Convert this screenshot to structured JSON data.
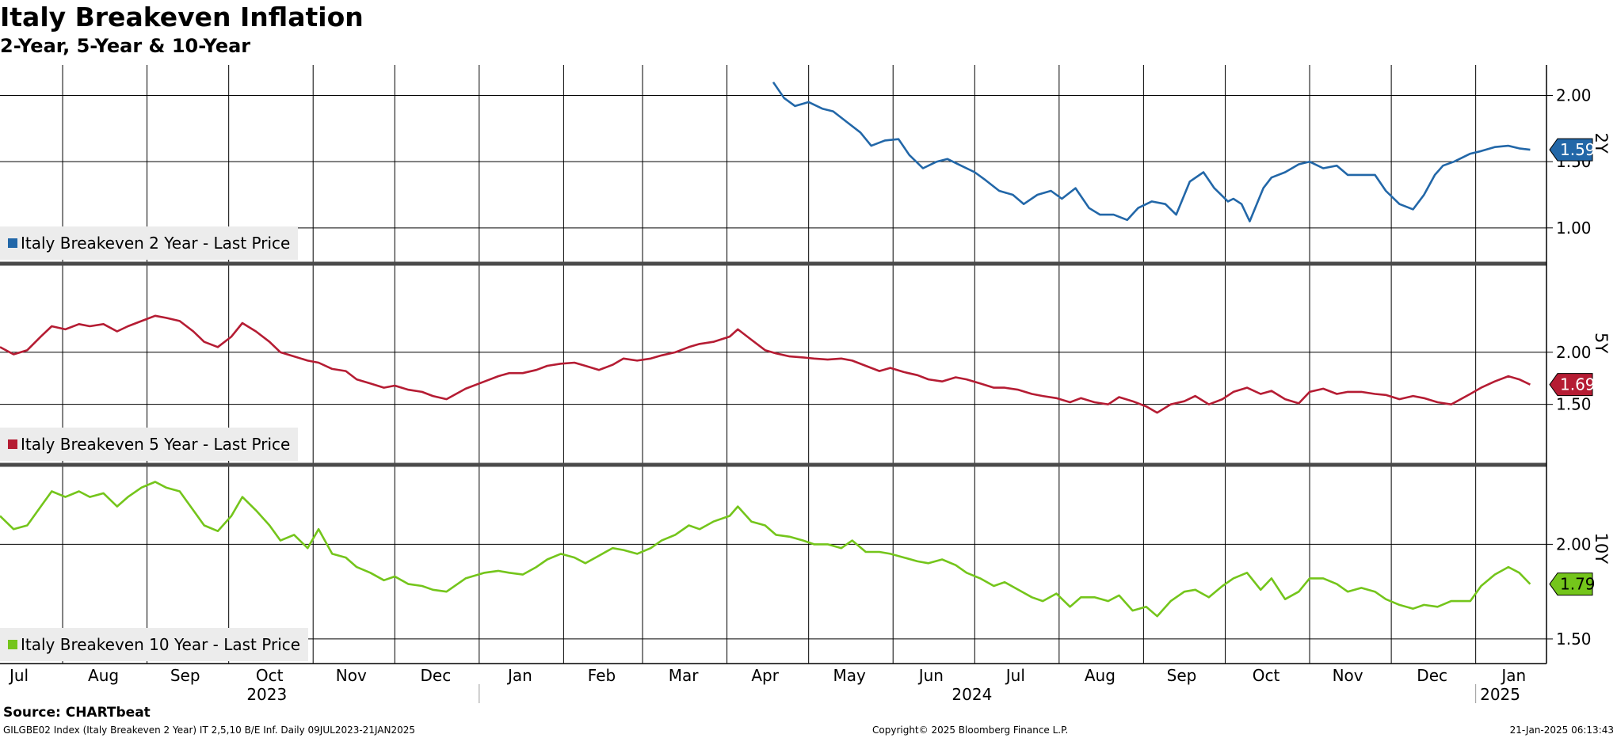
{
  "header": {
    "title": "Italy Breakeven Inflation",
    "subtitle": "2-Year, 5-Year & 10-Year"
  },
  "footer": {
    "source": "Source: CHARTbeat",
    "index_info": "GILGBE02 Index (Italy Breakeven 2 Year) IT 2,5,10 B/E Inf.  Daily 09JUL2023-21JAN2025",
    "copyright": "Copyright© 2025 Bloomberg Finance L.P.",
    "timestamp": "21-Jan-2025 06:13:43"
  },
  "chart_data": [
    {
      "type": "line",
      "axis_title": "2Y",
      "legend": "Italy Breakeven 2 Year - Last Price",
      "color": "#2267a8",
      "last_value": "1.59",
      "ylim": [
        0.73,
        2.23
      ],
      "yticks": [
        "2.00",
        "1.50",
        "1.00"
      ],
      "series": {
        "name": "Italy Breakeven 2 Year - Last Price",
        "x": [
          "2024-04-18",
          "2024-04-22",
          "2024-04-26",
          "2024-05-01",
          "2024-05-06",
          "2024-05-10",
          "2024-05-15",
          "2024-05-20",
          "2024-05-24",
          "2024-05-29",
          "2024-06-03",
          "2024-06-07",
          "2024-06-12",
          "2024-06-17",
          "2024-06-21",
          "2024-06-26",
          "2024-07-01",
          "2024-07-05",
          "2024-07-10",
          "2024-07-15",
          "2024-07-19",
          "2024-07-24",
          "2024-07-29",
          "2024-08-02",
          "2024-08-07",
          "2024-08-12",
          "2024-08-16",
          "2024-08-21",
          "2024-08-26",
          "2024-08-30",
          "2024-09-04",
          "2024-09-09",
          "2024-09-13",
          "2024-09-18",
          "2024-09-23",
          "2024-09-27",
          "2024-10-02",
          "2024-10-04",
          "2024-10-07",
          "2024-10-10",
          "2024-10-15",
          "2024-10-18",
          "2024-10-23",
          "2024-10-28",
          "2024-11-01",
          "2024-11-06",
          "2024-11-11",
          "2024-11-15",
          "2024-11-20",
          "2024-11-25",
          "2024-11-29",
          "2024-12-04",
          "2024-12-09",
          "2024-12-13",
          "2024-12-17",
          "2024-12-20",
          "2024-12-24",
          "2024-12-30",
          "2025-01-03",
          "2025-01-08",
          "2025-01-13",
          "2025-01-17",
          "2025-01-21"
        ],
        "y": [
          2.1,
          1.98,
          1.92,
          1.95,
          1.9,
          1.88,
          1.8,
          1.72,
          1.62,
          1.66,
          1.67,
          1.55,
          1.45,
          1.5,
          1.52,
          1.47,
          1.42,
          1.36,
          1.28,
          1.25,
          1.18,
          1.25,
          1.28,
          1.22,
          1.3,
          1.15,
          1.1,
          1.1,
          1.06,
          1.15,
          1.2,
          1.18,
          1.1,
          1.35,
          1.42,
          1.3,
          1.2,
          1.22,
          1.18,
          1.05,
          1.3,
          1.38,
          1.42,
          1.48,
          1.5,
          1.45,
          1.47,
          1.4,
          1.4,
          1.4,
          1.28,
          1.18,
          1.14,
          1.25,
          1.4,
          1.47,
          1.5,
          1.56,
          1.58,
          1.61,
          1.62,
          1.6,
          1.59
        ]
      }
    },
    {
      "type": "line",
      "axis_title": "5Y",
      "legend": "Italy Breakeven 5 Year - Last Price",
      "color": "#b51c33",
      "last_value": "1.69",
      "ylim": [
        0.92,
        2.85
      ],
      "yticks": [
        "2.00",
        "1.50"
      ],
      "series": {
        "name": "Italy Breakeven 5 Year - Last Price",
        "x": [
          "2023-07-09",
          "2023-07-14",
          "2023-07-19",
          "2023-07-24",
          "2023-07-28",
          "2023-08-02",
          "2023-08-07",
          "2023-08-11",
          "2023-08-16",
          "2023-08-21",
          "2023-08-25",
          "2023-08-30",
          "2023-09-04",
          "2023-09-08",
          "2023-09-13",
          "2023-09-18",
          "2023-09-22",
          "2023-09-27",
          "2023-10-02",
          "2023-10-06",
          "2023-10-11",
          "2023-10-16",
          "2023-10-20",
          "2023-10-25",
          "2023-10-30",
          "2023-11-03",
          "2023-11-08",
          "2023-11-13",
          "2023-11-17",
          "2023-11-22",
          "2023-11-27",
          "2023-12-01",
          "2023-12-06",
          "2023-12-11",
          "2023-12-15",
          "2023-12-20",
          "2023-12-27",
          "2024-01-03",
          "2024-01-08",
          "2024-01-12",
          "2024-01-17",
          "2024-01-22",
          "2024-01-26",
          "2024-01-31",
          "2024-02-05",
          "2024-02-09",
          "2024-02-14",
          "2024-02-19",
          "2024-02-23",
          "2024-02-28",
          "2024-03-04",
          "2024-03-08",
          "2024-03-13",
          "2024-03-18",
          "2024-03-22",
          "2024-03-27",
          "2024-04-02",
          "2024-04-05",
          "2024-04-10",
          "2024-04-15",
          "2024-04-19",
          "2024-04-24",
          "2024-04-29",
          "2024-05-03",
          "2024-05-08",
          "2024-05-13",
          "2024-05-17",
          "2024-05-22",
          "2024-05-27",
          "2024-05-31",
          "2024-06-05",
          "2024-06-10",
          "2024-06-14",
          "2024-06-19",
          "2024-06-24",
          "2024-06-28",
          "2024-07-03",
          "2024-07-08",
          "2024-07-12",
          "2024-07-17",
          "2024-07-22",
          "2024-07-26",
          "2024-07-31",
          "2024-08-05",
          "2024-08-09",
          "2024-08-14",
          "2024-08-19",
          "2024-08-23",
          "2024-08-28",
          "2024-09-02",
          "2024-09-06",
          "2024-09-11",
          "2024-09-16",
          "2024-09-20",
          "2024-09-25",
          "2024-09-30",
          "2024-10-04",
          "2024-10-09",
          "2024-10-14",
          "2024-10-18",
          "2024-10-23",
          "2024-10-28",
          "2024-11-01",
          "2024-11-06",
          "2024-11-11",
          "2024-11-15",
          "2024-11-20",
          "2024-11-25",
          "2024-11-29",
          "2024-12-04",
          "2024-12-09",
          "2024-12-13",
          "2024-12-18",
          "2024-12-23",
          "2024-12-30",
          "2025-01-03",
          "2025-01-08",
          "2025-01-13",
          "2025-01-17",
          "2025-01-21"
        ],
        "y": [
          2.05,
          1.98,
          2.02,
          2.15,
          2.25,
          2.22,
          2.27,
          2.25,
          2.27,
          2.2,
          2.25,
          2.3,
          2.35,
          2.33,
          2.3,
          2.2,
          2.1,
          2.05,
          2.15,
          2.28,
          2.2,
          2.1,
          2.0,
          1.96,
          1.92,
          1.9,
          1.84,
          1.82,
          1.74,
          1.7,
          1.66,
          1.68,
          1.64,
          1.62,
          1.58,
          1.55,
          1.65,
          1.72,
          1.77,
          1.8,
          1.8,
          1.83,
          1.87,
          1.89,
          1.9,
          1.87,
          1.83,
          1.88,
          1.94,
          1.92,
          1.94,
          1.97,
          2.0,
          2.05,
          2.08,
          2.1,
          2.15,
          2.22,
          2.12,
          2.02,
          1.99,
          1.96,
          1.95,
          1.94,
          1.93,
          1.94,
          1.92,
          1.87,
          1.82,
          1.85,
          1.81,
          1.78,
          1.74,
          1.72,
          1.76,
          1.74,
          1.7,
          1.66,
          1.66,
          1.64,
          1.6,
          1.58,
          1.56,
          1.52,
          1.56,
          1.52,
          1.5,
          1.57,
          1.53,
          1.48,
          1.42,
          1.5,
          1.53,
          1.58,
          1.5,
          1.55,
          1.62,
          1.66,
          1.6,
          1.63,
          1.55,
          1.51,
          1.62,
          1.65,
          1.6,
          1.62,
          1.62,
          1.6,
          1.59,
          1.55,
          1.58,
          1.56,
          1.52,
          1.5,
          1.6,
          1.66,
          1.72,
          1.77,
          1.74,
          1.69
        ]
      }
    },
    {
      "type": "line",
      "axis_title": "10Y",
      "legend": "Italy Breakeven 10 Year - Last Price",
      "color": "#74c51b",
      "last_value": "1.79",
      "ylim": [
        1.37,
        2.42
      ],
      "yticks": [
        "2.00",
        "1.50"
      ],
      "series": {
        "name": "Italy Breakeven 10 Year - Last Price",
        "x": [
          "2023-07-09",
          "2023-07-14",
          "2023-07-19",
          "2023-07-24",
          "2023-07-28",
          "2023-08-02",
          "2023-08-07",
          "2023-08-11",
          "2023-08-16",
          "2023-08-21",
          "2023-08-25",
          "2023-08-30",
          "2023-09-04",
          "2023-09-08",
          "2023-09-13",
          "2023-09-18",
          "2023-09-22",
          "2023-09-27",
          "2023-10-02",
          "2023-10-06",
          "2023-10-11",
          "2023-10-16",
          "2023-10-20",
          "2023-10-25",
          "2023-10-30",
          "2023-11-03",
          "2023-11-08",
          "2023-11-13",
          "2023-11-17",
          "2023-11-22",
          "2023-11-27",
          "2023-12-01",
          "2023-12-06",
          "2023-12-11",
          "2023-12-15",
          "2023-12-20",
          "2023-12-27",
          "2024-01-03",
          "2024-01-08",
          "2024-01-12",
          "2024-01-17",
          "2024-01-22",
          "2024-01-26",
          "2024-01-31",
          "2024-02-05",
          "2024-02-09",
          "2024-02-14",
          "2024-02-19",
          "2024-02-23",
          "2024-02-28",
          "2024-03-04",
          "2024-03-08",
          "2024-03-13",
          "2024-03-18",
          "2024-03-22",
          "2024-03-27",
          "2024-04-02",
          "2024-04-05",
          "2024-04-10",
          "2024-04-15",
          "2024-04-19",
          "2024-04-24",
          "2024-04-29",
          "2024-05-03",
          "2024-05-08",
          "2024-05-13",
          "2024-05-17",
          "2024-05-22",
          "2024-05-27",
          "2024-05-31",
          "2024-06-05",
          "2024-06-10",
          "2024-06-14",
          "2024-06-19",
          "2024-06-24",
          "2024-06-28",
          "2024-07-03",
          "2024-07-08",
          "2024-07-12",
          "2024-07-17",
          "2024-07-22",
          "2024-07-26",
          "2024-07-31",
          "2024-08-05",
          "2024-08-09",
          "2024-08-14",
          "2024-08-19",
          "2024-08-23",
          "2024-08-28",
          "2024-09-02",
          "2024-09-06",
          "2024-09-11",
          "2024-09-16",
          "2024-09-20",
          "2024-09-25",
          "2024-09-30",
          "2024-10-04",
          "2024-10-09",
          "2024-10-14",
          "2024-10-18",
          "2024-10-23",
          "2024-10-28",
          "2024-11-01",
          "2024-11-06",
          "2024-11-11",
          "2024-11-15",
          "2024-11-20",
          "2024-11-25",
          "2024-11-29",
          "2024-12-04",
          "2024-12-09",
          "2024-12-13",
          "2024-12-18",
          "2024-12-23",
          "2024-12-30",
          "2025-01-03",
          "2025-01-08",
          "2025-01-13",
          "2025-01-17",
          "2025-01-21"
        ],
        "y": [
          2.15,
          2.08,
          2.1,
          2.2,
          2.28,
          2.25,
          2.28,
          2.25,
          2.27,
          2.2,
          2.25,
          2.3,
          2.33,
          2.3,
          2.28,
          2.18,
          2.1,
          2.07,
          2.15,
          2.25,
          2.18,
          2.1,
          2.02,
          2.05,
          1.98,
          2.08,
          1.95,
          1.93,
          1.88,
          1.85,
          1.81,
          1.83,
          1.79,
          1.78,
          1.76,
          1.75,
          1.82,
          1.85,
          1.86,
          1.85,
          1.84,
          1.88,
          1.92,
          1.95,
          1.93,
          1.9,
          1.94,
          1.98,
          1.97,
          1.95,
          1.98,
          2.02,
          2.05,
          2.1,
          2.08,
          2.12,
          2.15,
          2.2,
          2.12,
          2.1,
          2.05,
          2.04,
          2.02,
          2.0,
          2.0,
          1.98,
          2.02,
          1.96,
          1.96,
          1.95,
          1.93,
          1.91,
          1.9,
          1.92,
          1.89,
          1.85,
          1.82,
          1.78,
          1.8,
          1.76,
          1.72,
          1.7,
          1.74,
          1.67,
          1.72,
          1.72,
          1.7,
          1.73,
          1.65,
          1.67,
          1.62,
          1.7,
          1.75,
          1.76,
          1.72,
          1.78,
          1.82,
          1.85,
          1.76,
          1.82,
          1.71,
          1.75,
          1.82,
          1.82,
          1.79,
          1.75,
          1.77,
          1.75,
          1.71,
          1.68,
          1.66,
          1.68,
          1.67,
          1.7,
          1.7,
          1.78,
          1.84,
          1.88,
          1.85,
          1.79
        ]
      }
    }
  ],
  "xaxis": {
    "months": [
      {
        "label": "Jul",
        "date": "2023-07-16"
      },
      {
        "label": "Aug",
        "date": "2023-08-16"
      },
      {
        "label": "Sep",
        "date": "2023-09-15"
      },
      {
        "label": "Oct",
        "date": "2023-10-16"
      },
      {
        "label": "Nov",
        "date": "2023-11-15"
      },
      {
        "label": "Dec",
        "date": "2023-12-16"
      },
      {
        "label": "Jan",
        "date": "2024-01-16"
      },
      {
        "label": "Feb",
        "date": "2024-02-15"
      },
      {
        "label": "Mar",
        "date": "2024-03-16"
      },
      {
        "label": "Apr",
        "date": "2024-04-15"
      },
      {
        "label": "May",
        "date": "2024-05-16"
      },
      {
        "label": "Jun",
        "date": "2024-06-15"
      },
      {
        "label": "Jul",
        "date": "2024-07-16"
      },
      {
        "label": "Aug",
        "date": "2024-08-16"
      },
      {
        "label": "Sep",
        "date": "2024-09-15"
      },
      {
        "label": "Oct",
        "date": "2024-10-16"
      },
      {
        "label": "Nov",
        "date": "2024-11-15"
      },
      {
        "label": "Dec",
        "date": "2024-12-16"
      },
      {
        "label": "Jan",
        "date": "2025-01-15"
      }
    ],
    "gridlines": [
      "2023-08-01",
      "2023-09-01",
      "2023-10-01",
      "2023-11-01",
      "2023-12-01",
      "2024-01-01",
      "2024-02-01",
      "2024-03-01",
      "2024-04-01",
      "2024-05-01",
      "2024-06-01",
      "2024-07-01",
      "2024-08-01",
      "2024-09-01",
      "2024-10-01",
      "2024-11-01",
      "2024-12-01",
      "2025-01-01"
    ],
    "years": [
      {
        "label": "2023",
        "date": "2023-10-15"
      },
      {
        "label": "2024",
        "date": "2024-06-30"
      },
      {
        "label": "2025",
        "date": "2025-01-10"
      }
    ],
    "year_dividers": [
      "2024-01-01",
      "2025-01-01"
    ],
    "range": [
      "2023-07-09",
      "2025-01-27"
    ]
  }
}
